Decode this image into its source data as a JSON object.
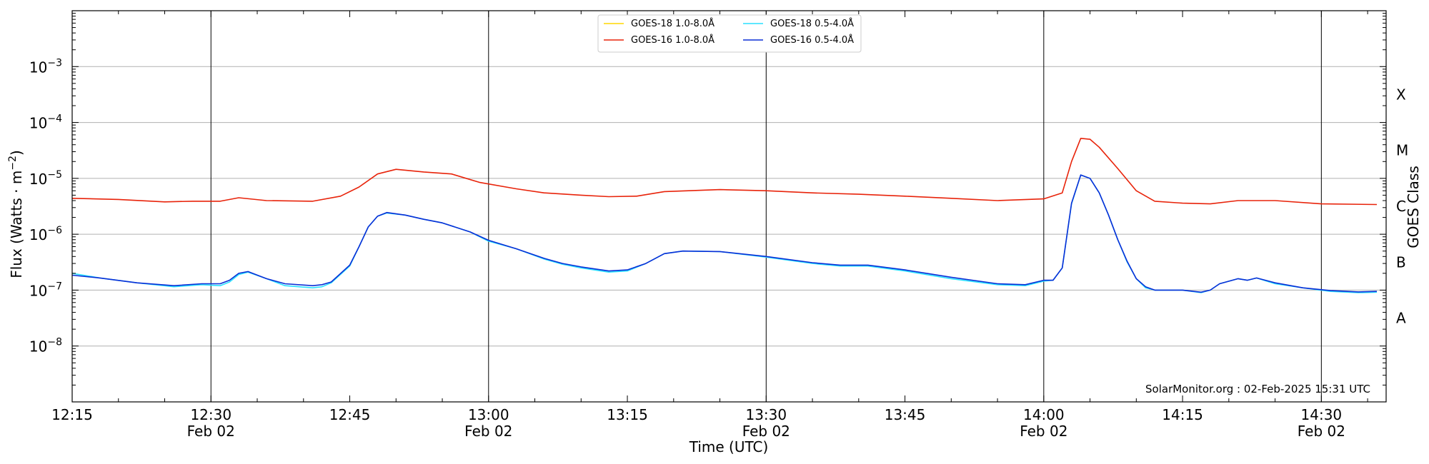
{
  "chart_data": {
    "type": "line",
    "title": "",
    "xlabel": "Time (UTC)",
    "ylabel": "Flux (Watts · m",
    "ylabel_sup": "−2",
    "ylabel_close": ")",
    "right_axis_label": "GOES Class",
    "scale": "log",
    "ylim": [
      1e-09,
      0.01
    ],
    "xlim": [
      "2025-02-02T12:15",
      "2025-02-02T14:37"
    ],
    "y_ticks": [
      {
        "value": 1e-08,
        "base": "10",
        "exp": "−8"
      },
      {
        "value": 1e-07,
        "base": "10",
        "exp": "−7"
      },
      {
        "value": 1e-06,
        "base": "10",
        "exp": "−6"
      },
      {
        "value": 1e-05,
        "base": "10",
        "exp": "−5"
      },
      {
        "value": 0.0001,
        "base": "10",
        "exp": "−4"
      },
      {
        "value": 0.001,
        "base": "10",
        "exp": "−3"
      }
    ],
    "x_ticks": [
      {
        "time": "12:15",
        "label": "12:15",
        "date": ""
      },
      {
        "time": "12:30",
        "label": "12:30",
        "date": "Feb 02"
      },
      {
        "time": "12:45",
        "label": "12:45",
        "date": ""
      },
      {
        "time": "13:00",
        "label": "13:00",
        "date": "Feb 02"
      },
      {
        "time": "13:15",
        "label": "13:15",
        "date": ""
      },
      {
        "time": "13:30",
        "label": "13:30",
        "date": "Feb 02"
      },
      {
        "time": "13:45",
        "label": "13:45",
        "date": ""
      },
      {
        "time": "14:00",
        "label": "14:00",
        "date": "Feb 02"
      },
      {
        "time": "14:15",
        "label": "14:15",
        "date": ""
      },
      {
        "time": "14:30",
        "label": "14:30",
        "date": "Feb 02"
      }
    ],
    "vertical_lines": [
      "12:30",
      "13:00",
      "13:30",
      "14:00",
      "14:30"
    ],
    "goes_classes": [
      {
        "label": "X",
        "flux": 0.0001
      },
      {
        "label": "M",
        "flux": 1e-05
      },
      {
        "label": "C",
        "flux": 1e-06
      },
      {
        "label": "B",
        "flux": 1e-07
      },
      {
        "label": "A",
        "flux": 1e-08
      }
    ],
    "grid": true,
    "legend_position": "top-center",
    "legend_columns": 2,
    "annotation": "SolarMonitor.org : 02-Feb-2025 15:31 UTC",
    "series": [
      {
        "name": "GOES-18 1.0-8.0Å",
        "color": "#ffd700",
        "points": []
      },
      {
        "name": "GOES-16 1.0-8.0Å",
        "color": "#e8230a",
        "points": [
          [
            "12:15",
            4.4e-06
          ],
          [
            "12:20",
            4.2e-06
          ],
          [
            "12:25",
            3.8e-06
          ],
          [
            "12:28",
            3.9e-06
          ],
          [
            "12:31",
            3.9e-06
          ],
          [
            "12:33",
            4.5e-06
          ],
          [
            "12:36",
            4e-06
          ],
          [
            "12:41",
            3.9e-06
          ],
          [
            "12:44",
            4.8e-06
          ],
          [
            "12:46",
            7e-06
          ],
          [
            "12:48",
            1.2e-05
          ],
          [
            "12:50",
            1.45e-05
          ],
          [
            "12:53",
            1.3e-05
          ],
          [
            "12:56",
            1.2e-05
          ],
          [
            "12:59",
            8.5e-06
          ],
          [
            "13:03",
            6.5e-06
          ],
          [
            "13:06",
            5.5e-06
          ],
          [
            "13:10",
            5e-06
          ],
          [
            "13:13",
            4.7e-06
          ],
          [
            "13:16",
            4.8e-06
          ],
          [
            "13:19",
            5.8e-06
          ],
          [
            "13:25",
            6.3e-06
          ],
          [
            "13:30",
            6e-06
          ],
          [
            "13:35",
            5.5e-06
          ],
          [
            "13:40",
            5.2e-06
          ],
          [
            "13:45",
            4.8e-06
          ],
          [
            "13:50",
            4.4e-06
          ],
          [
            "13:55",
            4e-06
          ],
          [
            "14:00",
            4.3e-06
          ],
          [
            "14:02",
            5.5e-06
          ],
          [
            "14:03",
            2e-05
          ],
          [
            "14:04",
            5.2e-05
          ],
          [
            "14:05",
            5e-05
          ],
          [
            "14:06",
            3.6e-05
          ],
          [
            "14:08",
            1.5e-05
          ],
          [
            "14:10",
            6e-06
          ],
          [
            "14:12",
            3.9e-06
          ],
          [
            "14:15",
            3.6e-06
          ],
          [
            "14:18",
            3.5e-06
          ],
          [
            "14:21",
            4e-06
          ],
          [
            "14:25",
            4e-06
          ],
          [
            "14:30",
            3.5e-06
          ],
          [
            "14:36",
            3.4e-06
          ]
        ]
      },
      {
        "name": "GOES-18 0.5-4.0Å",
        "color": "#29e1ff",
        "points": [
          [
            "12:15",
            2e-07
          ],
          [
            "12:18",
            1.65e-07
          ],
          [
            "12:22",
            1.35e-07
          ],
          [
            "12:26",
            1.15e-07
          ],
          [
            "12:29",
            1.25e-07
          ],
          [
            "12:31",
            1.2e-07
          ],
          [
            "12:32",
            1.4e-07
          ],
          [
            "12:33",
            1.9e-07
          ],
          [
            "12:34",
            2.1e-07
          ],
          [
            "12:36",
            1.6e-07
          ],
          [
            "12:38",
            1.2e-07
          ],
          [
            "12:41",
            1.1e-07
          ],
          [
            "12:42",
            1.15e-07
          ],
          [
            "12:43",
            1.35e-07
          ],
          [
            "12:45",
            2.7e-07
          ],
          [
            "12:46",
            6e-07
          ],
          [
            "12:47",
            1.35e-06
          ],
          [
            "12:48",
            2.1e-06
          ],
          [
            "12:49",
            2.4e-06
          ],
          [
            "12:51",
            2.2e-06
          ],
          [
            "12:53",
            1.85e-06
          ],
          [
            "12:55",
            1.6e-06
          ],
          [
            "12:58",
            1.1e-06
          ],
          [
            "13:00",
            7.5e-07
          ],
          [
            "13:03",
            5.5e-07
          ],
          [
            "13:06",
            3.6e-07
          ],
          [
            "13:08",
            2.9e-07
          ],
          [
            "13:10",
            2.5e-07
          ],
          [
            "13:13",
            2.1e-07
          ],
          [
            "13:15",
            2.2e-07
          ],
          [
            "13:17",
            3e-07
          ],
          [
            "13:19",
            4.5e-07
          ],
          [
            "13:21",
            5e-07
          ],
          [
            "13:25",
            4.9e-07
          ],
          [
            "13:30",
            3.9e-07
          ],
          [
            "13:35",
            3e-07
          ],
          [
            "13:38",
            2.7e-07
          ],
          [
            "13:41",
            2.7e-07
          ],
          [
            "13:45",
            2.2e-07
          ],
          [
            "13:50",
            1.6e-07
          ],
          [
            "13:55",
            1.25e-07
          ],
          [
            "13:58",
            1.2e-07
          ],
          [
            "14:00",
            1.45e-07
          ],
          [
            "14:01",
            1.5e-07
          ],
          [
            "14:02",
            2.5e-07
          ],
          [
            "14:03",
            3.5e-06
          ],
          [
            "14:04",
            1.15e-05
          ],
          [
            "14:05",
            1e-05
          ],
          [
            "14:06",
            5.5e-06
          ],
          [
            "14:07",
            2.2e-06
          ],
          [
            "14:08",
            8e-07
          ],
          [
            "14:09",
            3.2e-07
          ],
          [
            "14:10",
            1.6e-07
          ],
          [
            "14:11",
            1.1e-07
          ],
          [
            "14:12",
            1e-07
          ],
          [
            "14:15",
            1e-07
          ],
          [
            "14:17",
            9e-08
          ],
          [
            "14:18",
            1e-07
          ],
          [
            "14:19",
            1.3e-07
          ],
          [
            "14:21",
            1.6e-07
          ],
          [
            "14:22",
            1.5e-07
          ],
          [
            "14:23",
            1.65e-07
          ],
          [
            "14:25",
            1.3e-07
          ],
          [
            "14:28",
            1.1e-07
          ],
          [
            "14:31",
            9.5e-08
          ],
          [
            "14:34",
            9e-08
          ],
          [
            "14:36",
            9.2e-08
          ]
        ]
      },
      {
        "name": "GOES-16 0.5-4.0Å",
        "color": "#0a2ed6",
        "points": [
          [
            "12:15",
            1.85e-07
          ],
          [
            "12:18",
            1.65e-07
          ],
          [
            "12:22",
            1.35e-07
          ],
          [
            "12:26",
            1.2e-07
          ],
          [
            "12:29",
            1.3e-07
          ],
          [
            "12:31",
            1.3e-07
          ],
          [
            "12:32",
            1.5e-07
          ],
          [
            "12:33",
            2e-07
          ],
          [
            "12:34",
            2.15e-07
          ],
          [
            "12:36",
            1.6e-07
          ],
          [
            "12:38",
            1.3e-07
          ],
          [
            "12:41",
            1.2e-07
          ],
          [
            "12:42",
            1.25e-07
          ],
          [
            "12:43",
            1.4e-07
          ],
          [
            "12:45",
            2.8e-07
          ],
          [
            "12:46",
            6e-07
          ],
          [
            "12:47",
            1.35e-06
          ],
          [
            "12:48",
            2.1e-06
          ],
          [
            "12:49",
            2.45e-06
          ],
          [
            "12:51",
            2.2e-06
          ],
          [
            "12:53",
            1.85e-06
          ],
          [
            "12:55",
            1.6e-06
          ],
          [
            "12:58",
            1.1e-06
          ],
          [
            "13:00",
            7.8e-07
          ],
          [
            "13:03",
            5.5e-07
          ],
          [
            "13:06",
            3.7e-07
          ],
          [
            "13:08",
            3e-07
          ],
          [
            "13:10",
            2.6e-07
          ],
          [
            "13:13",
            2.2e-07
          ],
          [
            "13:15",
            2.3e-07
          ],
          [
            "13:17",
            3e-07
          ],
          [
            "13:19",
            4.5e-07
          ],
          [
            "13:21",
            5e-07
          ],
          [
            "13:25",
            4.9e-07
          ],
          [
            "13:30",
            4e-07
          ],
          [
            "13:35",
            3.1e-07
          ],
          [
            "13:38",
            2.8e-07
          ],
          [
            "13:41",
            2.8e-07
          ],
          [
            "13:45",
            2.3e-07
          ],
          [
            "13:50",
            1.7e-07
          ],
          [
            "13:55",
            1.3e-07
          ],
          [
            "13:58",
            1.25e-07
          ],
          [
            "14:00",
            1.5e-07
          ],
          [
            "14:01",
            1.5e-07
          ],
          [
            "14:02",
            2.5e-07
          ],
          [
            "14:03",
            3.6e-06
          ],
          [
            "14:04",
            1.15e-05
          ],
          [
            "14:05",
            1e-05
          ],
          [
            "14:06",
            5.5e-06
          ],
          [
            "14:07",
            2.2e-06
          ],
          [
            "14:08",
            8e-07
          ],
          [
            "14:09",
            3.3e-07
          ],
          [
            "14:10",
            1.6e-07
          ],
          [
            "14:11",
            1.15e-07
          ],
          [
            "14:12",
            1e-07
          ],
          [
            "14:15",
            1e-07
          ],
          [
            "14:17",
            9.2e-08
          ],
          [
            "14:18",
            1e-07
          ],
          [
            "14:19",
            1.3e-07
          ],
          [
            "14:21",
            1.6e-07
          ],
          [
            "14:22",
            1.5e-07
          ],
          [
            "14:23",
            1.65e-07
          ],
          [
            "14:25",
            1.35e-07
          ],
          [
            "14:28",
            1.1e-07
          ],
          [
            "14:31",
            9.8e-08
          ],
          [
            "14:34",
            9.3e-08
          ],
          [
            "14:36",
            9.5e-08
          ]
        ]
      }
    ]
  }
}
